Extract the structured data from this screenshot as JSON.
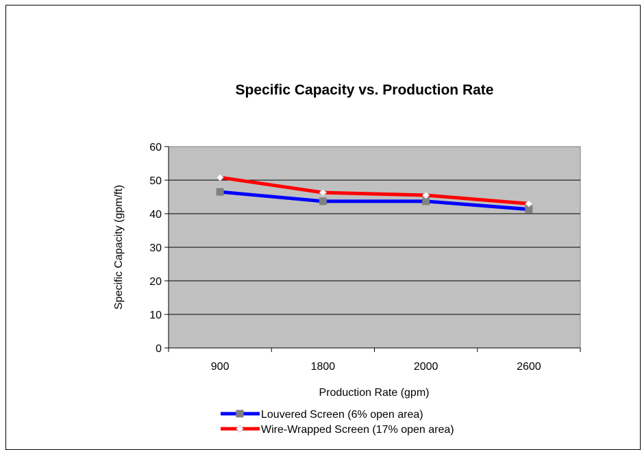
{
  "chart_data": {
    "type": "line",
    "title": "Specific Capacity vs. Production Rate",
    "xlabel": "Production Rate (gpm)",
    "ylabel": "Specific Capacity (gpm/ft)",
    "categories": [
      "900",
      "1800",
      "2000",
      "2600"
    ],
    "ylim": [
      0,
      60
    ],
    "yticks": [
      0,
      10,
      20,
      30,
      40,
      50,
      60
    ],
    "grid": true,
    "legend_position": "bottom",
    "plot_background": "#c0c0c0",
    "series": [
      {
        "name": "Louvered Screen (6% open area)",
        "values": [
          46.5,
          43.7,
          43.7,
          41.3
        ],
        "color": "#0000ff",
        "marker": "square",
        "marker_color": "#808080"
      },
      {
        "name": "Wire-Wrapped Screen (17% open area)",
        "values": [
          50.8,
          46.3,
          45.5,
          43.0
        ],
        "color": "#ff0000",
        "marker": "diamond",
        "marker_color": "#ffffff"
      }
    ]
  }
}
